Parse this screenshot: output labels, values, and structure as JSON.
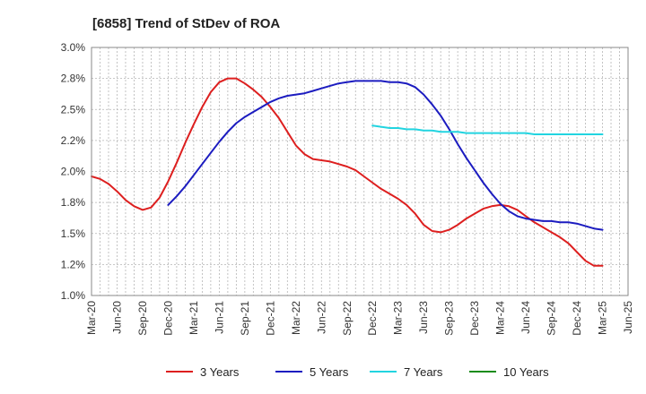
{
  "chart_data": {
    "type": "line",
    "title": "[6858]  Trend of StDev of ROA",
    "xlabel": "",
    "ylabel": "",
    "x_ticks": [
      "Mar-20",
      "Jun-20",
      "Sep-20",
      "Dec-20",
      "Mar-21",
      "Jun-21",
      "Sep-21",
      "Dec-21",
      "Mar-22",
      "Jun-22",
      "Sep-22",
      "Dec-22",
      "Mar-23",
      "Jun-23",
      "Sep-23",
      "Dec-23",
      "Mar-24",
      "Jun-24",
      "Sep-24",
      "Dec-24",
      "Mar-25",
      "Jun-25"
    ],
    "y_ticks": [
      "1.0%",
      "1.2%",
      "1.5%",
      "1.8%",
      "2.0%",
      "2.2%",
      "2.5%",
      "2.8%",
      "3.0%"
    ],
    "ylim": [
      1.0,
      3.0
    ],
    "grid": true,
    "legend_position": "bottom",
    "series": [
      {
        "name": "3 Years",
        "color": "#dd1f1f",
        "x": [
          "2020-03",
          "2020-04",
          "2020-05",
          "2020-06",
          "2020-07",
          "2020-08",
          "2020-09",
          "2020-10",
          "2020-11",
          "2020-12",
          "2021-01",
          "2021-02",
          "2021-03",
          "2021-04",
          "2021-05",
          "2021-06",
          "2021-07",
          "2021-08",
          "2021-09",
          "2021-10",
          "2021-11",
          "2021-12",
          "2022-01",
          "2022-02",
          "2022-03",
          "2022-04",
          "2022-05",
          "2022-06",
          "2022-07",
          "2022-08",
          "2022-09",
          "2022-10",
          "2022-11",
          "2022-12",
          "2023-01",
          "2023-02",
          "2023-03",
          "2023-04",
          "2023-05",
          "2023-06",
          "2023-07",
          "2023-08",
          "2023-09",
          "2023-10",
          "2023-11",
          "2023-12",
          "2024-01",
          "2024-02",
          "2024-03",
          "2024-04",
          "2024-05",
          "2024-06",
          "2024-07",
          "2024-08",
          "2024-09",
          "2024-10",
          "2024-11",
          "2024-12",
          "2025-01",
          "2025-02",
          "2025-03"
        ],
        "values": [
          1.96,
          1.94,
          1.9,
          1.84,
          1.77,
          1.72,
          1.69,
          1.71,
          1.79,
          1.92,
          2.07,
          2.23,
          2.38,
          2.52,
          2.64,
          2.72,
          2.75,
          2.75,
          2.71,
          2.66,
          2.6,
          2.52,
          2.43,
          2.32,
          2.21,
          2.14,
          2.1,
          2.09,
          2.08,
          2.06,
          2.04,
          2.01,
          1.96,
          1.91,
          1.86,
          1.82,
          1.78,
          1.73,
          1.66,
          1.57,
          1.52,
          1.51,
          1.53,
          1.57,
          1.62,
          1.66,
          1.7,
          1.72,
          1.73,
          1.72,
          1.69,
          1.64,
          1.59,
          1.55,
          1.51,
          1.47,
          1.42,
          1.35,
          1.28,
          1.24,
          1.24
        ]
      },
      {
        "name": "5 Years",
        "color": "#1c1cc0",
        "x": [
          "2020-12",
          "2021-01",
          "2021-02",
          "2021-03",
          "2021-04",
          "2021-05",
          "2021-06",
          "2021-07",
          "2021-08",
          "2021-09",
          "2021-10",
          "2021-11",
          "2021-12",
          "2022-01",
          "2022-02",
          "2022-03",
          "2022-04",
          "2022-05",
          "2022-06",
          "2022-07",
          "2022-08",
          "2022-09",
          "2022-10",
          "2022-11",
          "2022-12",
          "2023-01",
          "2023-02",
          "2023-03",
          "2023-04",
          "2023-05",
          "2023-06",
          "2023-07",
          "2023-08",
          "2023-09",
          "2023-10",
          "2023-11",
          "2023-12",
          "2024-01",
          "2024-02",
          "2024-03",
          "2024-04",
          "2024-05",
          "2024-06",
          "2024-07",
          "2024-08",
          "2024-09",
          "2024-10",
          "2024-11",
          "2024-12",
          "2025-01",
          "2025-02",
          "2025-03"
        ],
        "values": [
          1.73,
          1.8,
          1.88,
          1.97,
          2.06,
          2.15,
          2.24,
          2.32,
          2.39,
          2.44,
          2.48,
          2.52,
          2.56,
          2.59,
          2.61,
          2.62,
          2.63,
          2.65,
          2.67,
          2.69,
          2.71,
          2.72,
          2.73,
          2.73,
          2.73,
          2.73,
          2.72,
          2.72,
          2.71,
          2.68,
          2.62,
          2.54,
          2.45,
          2.34,
          2.22,
          2.11,
          2.01,
          1.91,
          1.82,
          1.74,
          1.68,
          1.64,
          1.62,
          1.61,
          1.6,
          1.6,
          1.59,
          1.59,
          1.58,
          1.56,
          1.54,
          1.53
        ]
      },
      {
        "name": "7 Years",
        "color": "#22d4e0",
        "x": [
          "2022-12",
          "2023-01",
          "2023-02",
          "2023-03",
          "2023-04",
          "2023-05",
          "2023-06",
          "2023-07",
          "2023-08",
          "2023-09",
          "2023-10",
          "2023-11",
          "2023-12",
          "2024-01",
          "2024-02",
          "2024-03",
          "2024-04",
          "2024-05",
          "2024-06",
          "2024-07",
          "2024-08",
          "2024-09",
          "2024-10",
          "2024-11",
          "2024-12",
          "2025-01",
          "2025-02",
          "2025-03"
        ],
        "values": [
          2.37,
          2.36,
          2.35,
          2.35,
          2.34,
          2.34,
          2.33,
          2.33,
          2.32,
          2.32,
          2.32,
          2.31,
          2.31,
          2.31,
          2.31,
          2.31,
          2.31,
          2.31,
          2.31,
          2.3,
          2.3,
          2.3,
          2.3,
          2.3,
          2.3,
          2.3,
          2.3,
          2.3
        ]
      },
      {
        "name": "10 Years",
        "color": "#1a8c1a",
        "x": [],
        "values": []
      }
    ]
  }
}
